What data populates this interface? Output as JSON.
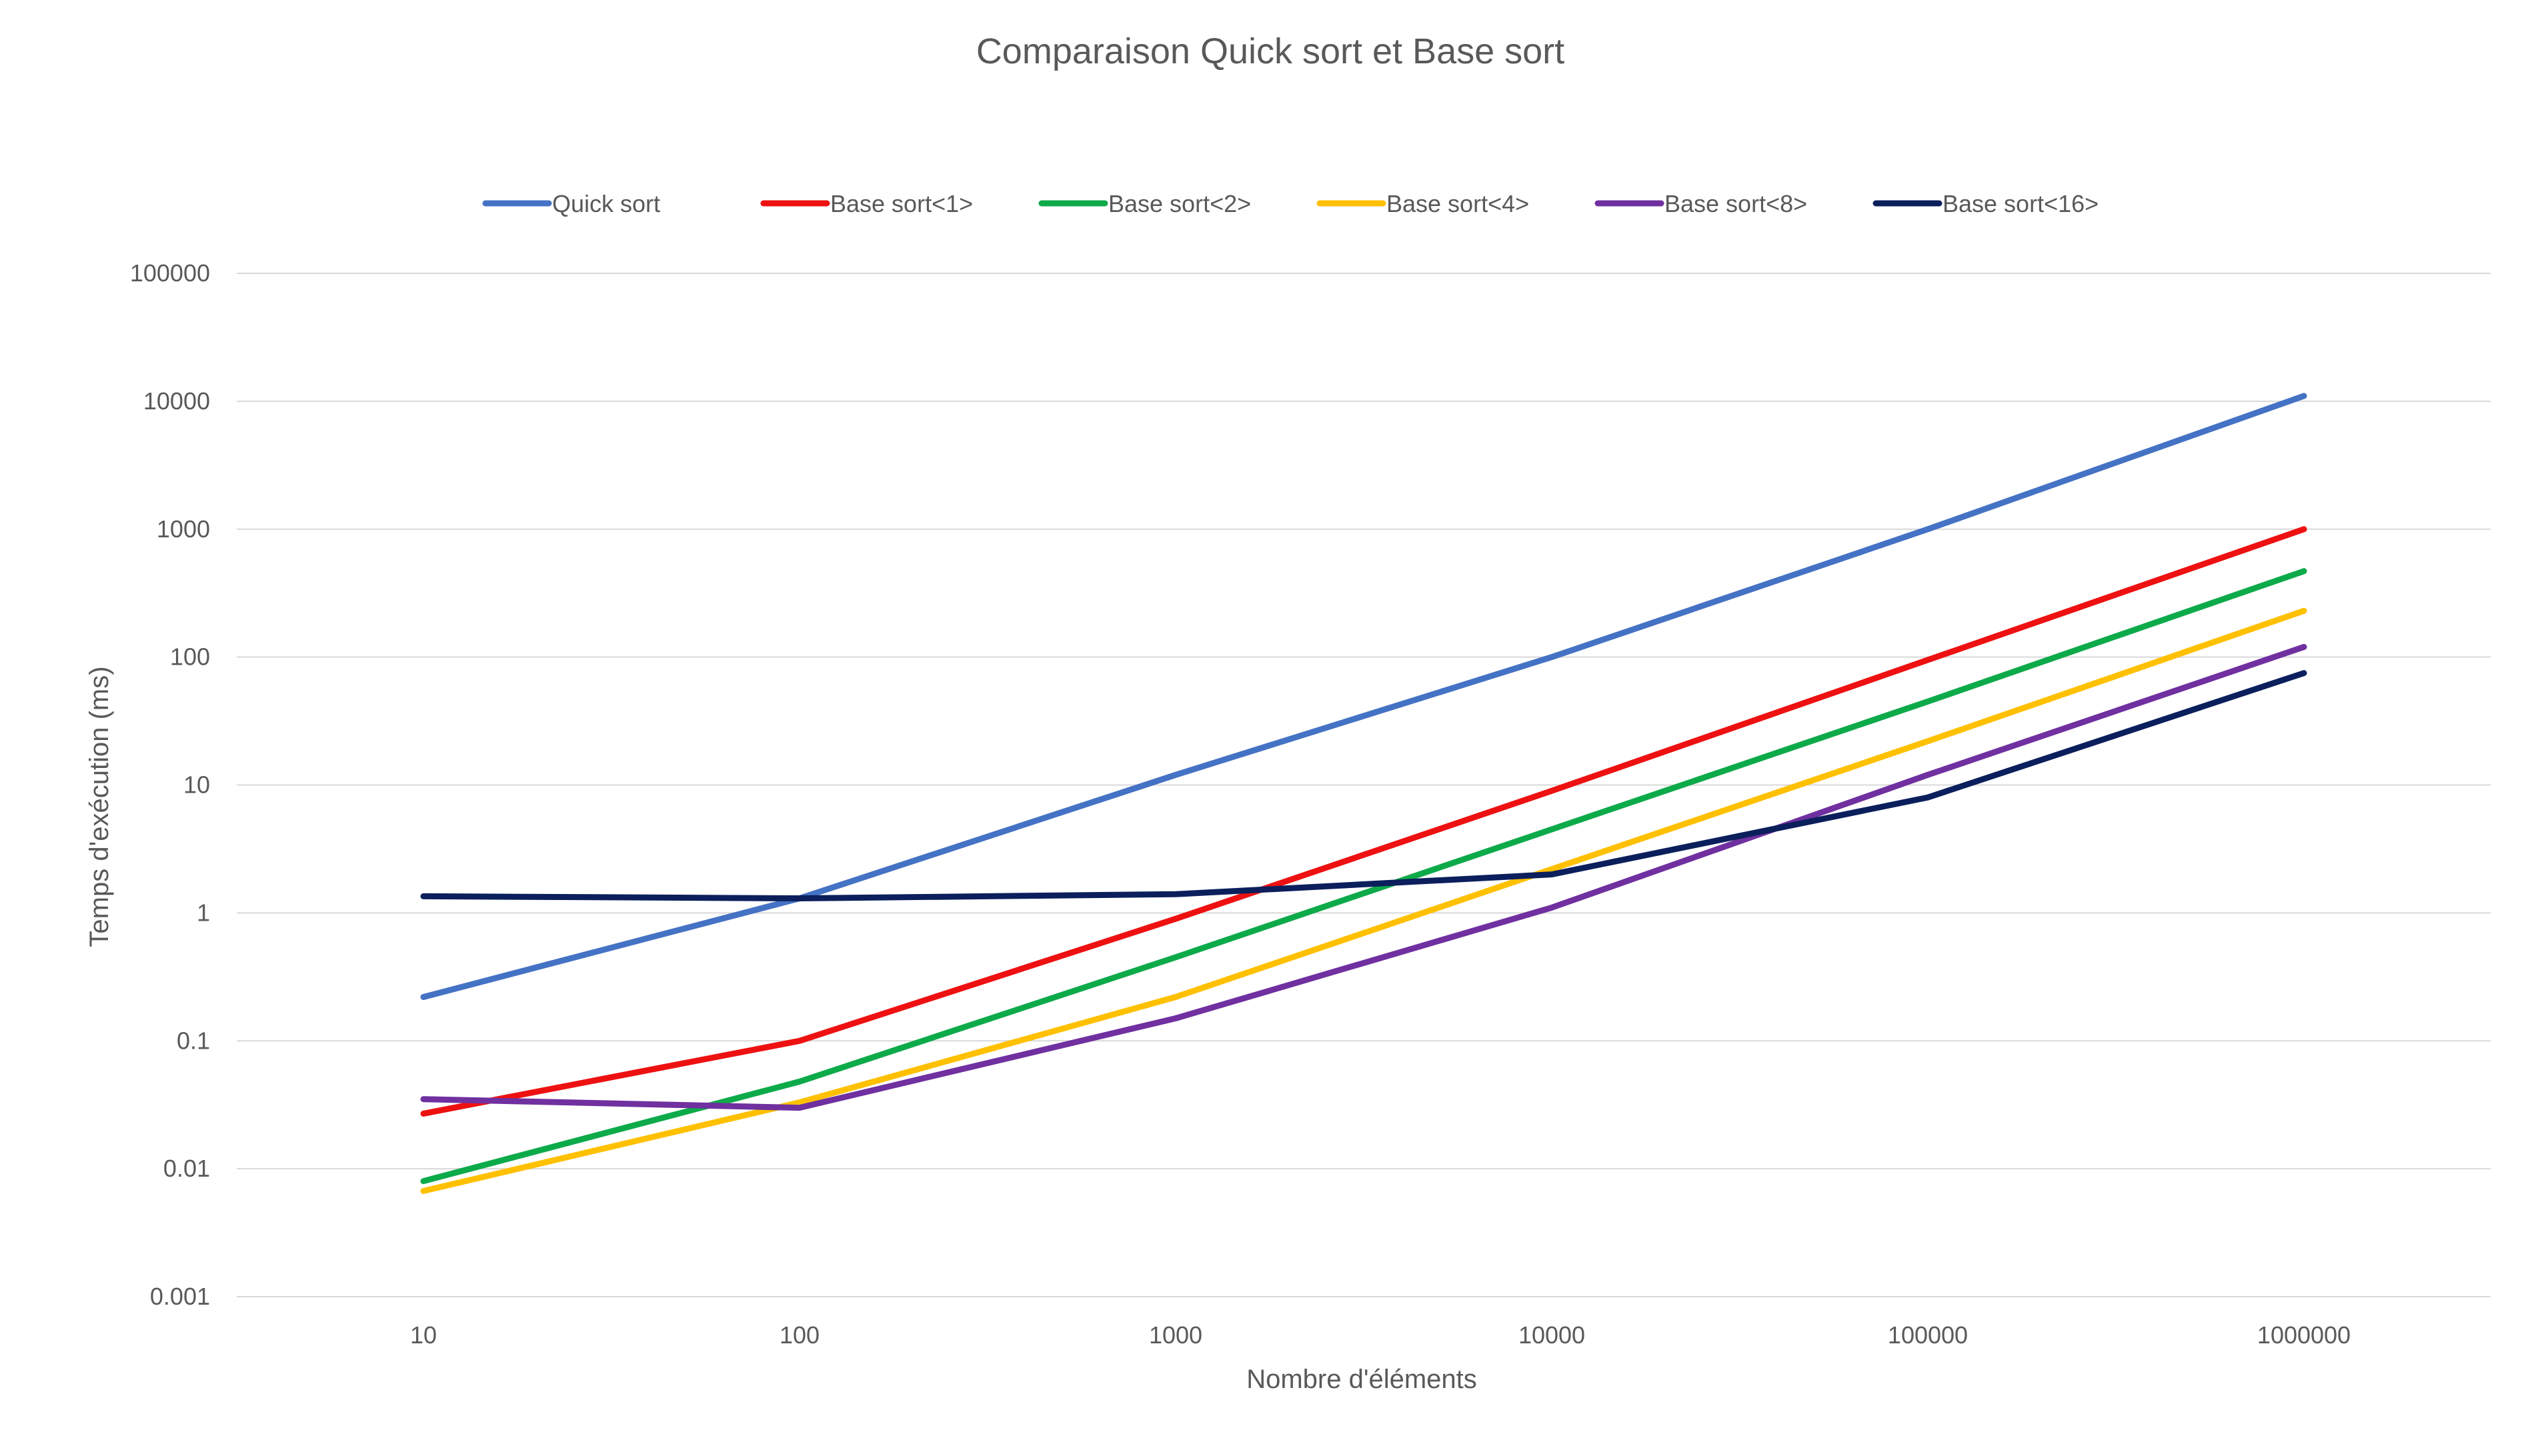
{
  "chart_data": {
    "type": "line",
    "title": "Comparaison Quick sort et Base sort",
    "xlabel": "Nombre d'éléments",
    "ylabel": "Temps d'exécution (ms)",
    "x_scale": "categorical",
    "y_scale": "log",
    "ylim": [
      0.001,
      100000
    ],
    "grid": true,
    "legend": "top",
    "categories": [
      "10",
      "100",
      "1000",
      "10000",
      "100000",
      "1000000"
    ],
    "y_ticks": [
      "0.001",
      "0.01",
      "0.1",
      "1",
      "10",
      "100",
      "1000",
      "10000",
      "100000"
    ],
    "series": [
      {
        "name": "Quick sort",
        "color": "#4472C4",
        "values": [
          0.22,
          1.3,
          12,
          100,
          1000,
          11000
        ]
      },
      {
        "name": "Base sort<1>",
        "color": "#EE1111",
        "values": [
          0.027,
          0.1,
          0.9,
          9,
          95,
          1000
        ]
      },
      {
        "name": "Base sort<2>",
        "color": "#0DAA4A",
        "values": [
          0.008,
          0.048,
          0.45,
          4.5,
          45,
          470
        ]
      },
      {
        "name": "Base sort<4>",
        "color": "#FFC000",
        "values": [
          0.0067,
          0.033,
          0.22,
          2.2,
          22,
          230
        ]
      },
      {
        "name": "Base sort<8>",
        "color": "#7030A0",
        "values": [
          0.035,
          0.03,
          0.15,
          1.1,
          12,
          120
        ]
      },
      {
        "name": "Base sort<16>",
        "color": "#0B1F5C",
        "values": [
          1.35,
          1.3,
          1.4,
          2,
          8,
          75
        ]
      }
    ]
  }
}
